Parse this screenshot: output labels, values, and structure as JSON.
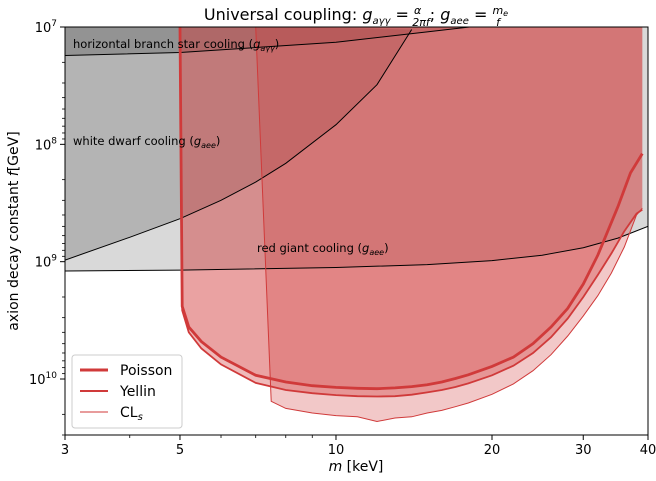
{
  "chart_data": {
    "type": "area",
    "title_main": "Universal coupling: ",
    "title_eq1_lhs": "g",
    "title_eq1_sub": "aγγ",
    "title_eq1_num": "α",
    "title_eq1_den": "2πf",
    "title_eq2_lhs": "g",
    "title_eq2_sub": "aee",
    "title_eq2_num": "m",
    "title_eq2_num_sub": "e",
    "title_eq2_den": "f",
    "xlabel_italic": "m",
    "xlabel_unit": "[keV]",
    "ylabel_prefix": "axion decay constant ",
    "ylabel_italic": "f",
    "ylabel_unit": "[GeV]",
    "x_scale": "log",
    "y_scale": "log",
    "y_inverted": true,
    "xlim": [
      3,
      40
    ],
    "ylim": [
      30000000000.0,
      10000000.0
    ],
    "x_ticks": [
      {
        "value": 3,
        "label": "3"
      },
      {
        "value": 5,
        "label": "5"
      },
      {
        "value": 10,
        "label": "10"
      },
      {
        "value": 20,
        "label": "20"
      },
      {
        "value": 30,
        "label": "30"
      },
      {
        "value": 40,
        "label": "40"
      }
    ],
    "y_ticks": [
      {
        "value": 10000000.0,
        "base": "10",
        "exp": "7"
      },
      {
        "value": 100000000.0,
        "base": "10",
        "exp": "8"
      },
      {
        "value": 1000000000.0,
        "base": "10",
        "exp": "9"
      },
      {
        "value": 10000000000.0,
        "base": "10",
        "exp": "10"
      }
    ],
    "annotations": {
      "hb": {
        "text": "horizontal branch star cooling (",
        "sym": "g",
        "sub": "aγγ",
        "close": ")"
      },
      "wd": {
        "text": "white dwarf cooling (",
        "sym": "g",
        "sub": "aee",
        "close": ")"
      },
      "rg": {
        "text": "red giant cooling (",
        "sym": "g",
        "sub": "aee",
        "close": ")"
      }
    },
    "constraints": {
      "horizontal_branch": {
        "x": [
          3,
          5,
          10,
          15,
          20,
          30,
          40
        ],
        "y": [
          17500000.0,
          16500000.0,
          13500000.0,
          11000000.0,
          9500000.0,
          8000000.0,
          7000000.0
        ]
      },
      "white_dwarf": {
        "x": [
          3,
          4,
          5,
          6,
          7,
          8,
          10,
          12,
          14
        ],
        "y": [
          970000000.0,
          620000000.0,
          430000000.0,
          300000000.0,
          210000000.0,
          145000000.0,
          68000000.0,
          31000000.0,
          10500000.0
        ]
      },
      "red_giant": {
        "x": [
          3,
          5,
          10,
          15,
          20,
          25,
          30,
          35,
          40
        ],
        "y": [
          1200000000.0,
          1180000000.0,
          1120000000.0,
          1060000000.0,
          980000000.0,
          880000000.0,
          760000000.0,
          630000000.0,
          500000000.0
        ]
      }
    },
    "series": [
      {
        "name": "Poisson",
        "color": "#d03a3a",
        "style": "thick",
        "x": [
          5,
          5.05,
          5.2,
          5.5,
          6,
          7,
          8,
          9,
          10,
          11,
          12,
          13,
          14,
          15,
          16,
          17,
          18,
          20,
          22,
          24,
          26,
          28,
          30,
          32,
          35,
          37,
          39
        ],
        "y": [
          10000000.0,
          2400000000.0,
          3600000000.0,
          4800000000.0,
          6500000000.0,
          9300000000.0,
          10600000000.0,
          11400000000.0,
          11800000000.0,
          12000000000.0,
          12100000000.0,
          11900000000.0,
          11600000000.0,
          11200000000.0,
          10600000000.0,
          9900000000.0,
          9200000000.0,
          7800000000.0,
          6500000000.0,
          5000000000.0,
          3600000000.0,
          2500000000.0,
          1550000000.0,
          880000000.0,
          340000000.0,
          175000000.0,
          120000000.0
        ]
      },
      {
        "name": "Yellin",
        "color": "#d03a3a",
        "style": "medium",
        "x": [
          5,
          5.05,
          5.2,
          5.5,
          6,
          7,
          8,
          9,
          10,
          11,
          12,
          13,
          14,
          15,
          16,
          17,
          18,
          20,
          22,
          24,
          26,
          28,
          30,
          32,
          34,
          36,
          38,
          39
        ],
        "y": [
          10000000.0,
          2600000000.0,
          4000000000.0,
          5500000000.0,
          7500000000.0,
          10800000000.0,
          12400000000.0,
          13200000000.0,
          13700000000.0,
          14000000000.0,
          14100000000.0,
          14000000000.0,
          13600000000.0,
          13000000000.0,
          12400000000.0,
          11700000000.0,
          10900000000.0,
          9300000000.0,
          7700000000.0,
          6000000000.0,
          4400000000.0,
          3050000000.0,
          2000000000.0,
          1300000000.0,
          850000000.0,
          550000000.0,
          390000000.0,
          360000000.0
        ]
      },
      {
        "name": "CL",
        "name_sub": "s",
        "color": "#d03a3a",
        "style": "thin",
        "x": [
          7,
          7.5,
          8,
          9,
          10,
          11,
          12,
          13,
          14,
          15,
          16,
          17,
          18,
          20,
          22,
          24,
          26,
          28,
          30,
          32,
          34,
          36,
          38,
          39
        ],
        "y": [
          10000000.0,
          15500000000.0,
          17800000000.0,
          19500000000.0,
          20500000000.0,
          21000000000.0,
          23000000000.0,
          21500000000.0,
          21000000000.0,
          19500000000.0,
          18500000000.0,
          17200000000.0,
          16000000000.0,
          13500000000.0,
          11000000000.0,
          8500000000.0,
          6200000000.0,
          4300000000.0,
          2900000000.0,
          1950000000.0,
          1250000000.0,
          750000000.0,
          400000000.0,
          350000000.0
        ]
      }
    ],
    "legend_location": "lower-left"
  }
}
